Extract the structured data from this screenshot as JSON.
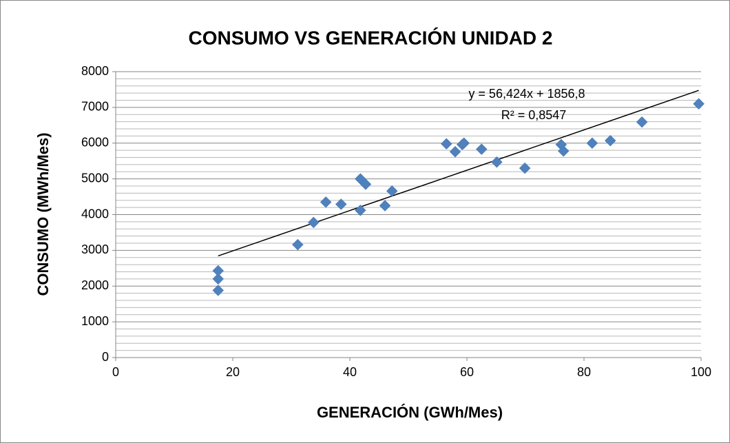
{
  "chart_data": {
    "type": "scatter",
    "title": "CONSUMO VS GENERACIÓN UNIDAD 2",
    "x_label": "GENERACIÓN (GWh/Mes)",
    "y_label": "CONSUMO (MWh/Mes)",
    "x": [
      17.5,
      17.5,
      17.5,
      31.1,
      33.8,
      35.9,
      38.5,
      41.8,
      42.7,
      41.8,
      46.0,
      47.2,
      56.5,
      58.0,
      59.2,
      59.5,
      62.5,
      65.1,
      69.9,
      76.1,
      76.5,
      81.4,
      84.5,
      89.9,
      99.6
    ],
    "values": [
      1880,
      2200,
      2430,
      3160,
      3780,
      4350,
      4290,
      5000,
      4850,
      4120,
      4250,
      4660,
      5980,
      5760,
      5960,
      6000,
      5830,
      5470,
      5300,
      5960,
      5780,
      6000,
      6070,
      6590,
      7100
    ],
    "color": "#4f81bd",
    "xlim": [
      0,
      100
    ],
    "xticks": [
      0,
      20,
      40,
      60,
      80,
      100
    ],
    "ylim": [
      0,
      8000
    ],
    "yticks": [
      0,
      1000,
      2000,
      3000,
      4000,
      5000,
      6000,
      7000,
      8000
    ],
    "yminorticks": [
      200,
      400,
      600,
      800,
      1200,
      1400,
      1600,
      1800,
      2200,
      2400,
      2600,
      2800,
      3200,
      3400,
      3600,
      3800,
      4200,
      4400,
      4600,
      4800,
      5200,
      5400,
      5600,
      5800,
      6200,
      6400,
      6600,
      6800,
      7200,
      7400,
      7600,
      7800
    ],
    "grid": true,
    "trendline": {
      "slope": 56.424,
      "intercept": 1856.8,
      "equation": "y = 56,424x + 1856,8",
      "r2": "R² = 0,8547"
    }
  }
}
